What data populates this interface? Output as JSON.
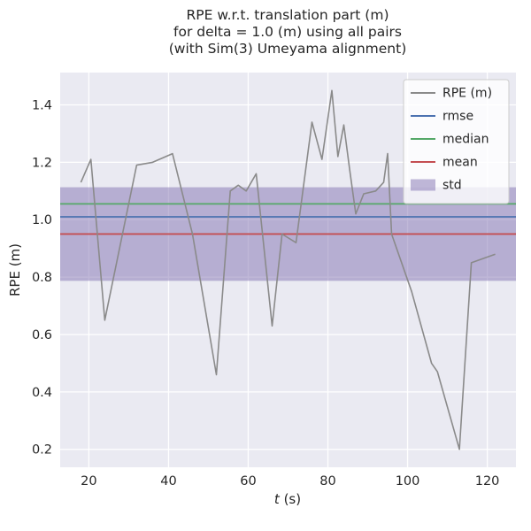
{
  "chart_data": {
    "type": "line",
    "title": "RPE w.r.t. translation part (m)\nfor delta = 1.0 (m) using all pairs\n(with Sim(3) Umeyama alignment)",
    "title_lines": [
      "RPE w.r.t. translation part (m)",
      "for delta = 1.0 (m) using all pairs",
      "(with Sim(3) Umeyama alignment)"
    ],
    "xlabel": "t (s)",
    "ylabel": "RPE (m)",
    "xlim": [
      12.8,
      127.2
    ],
    "ylim": [
      0.1375,
      1.5125
    ],
    "xticks": [
      20,
      40,
      60,
      80,
      100,
      120
    ],
    "yticks": [
      0.2,
      0.4,
      0.6,
      0.8,
      1.0,
      1.2,
      1.4
    ],
    "grid": true,
    "background_color": "#eaeaf2",
    "grid_color": "#ffffff",
    "series": [
      {
        "name": "RPE (m)",
        "color": "#8a8a8a",
        "x": [
          18,
          20.5,
          24,
          32,
          36,
          41,
          46,
          52,
          55.5,
          57.5,
          59.5,
          62,
          66,
          68.5,
          72,
          76,
          78.5,
          81,
          82.5,
          84,
          85.5,
          87,
          89,
          92,
          94,
          95,
          96,
          101,
          106,
          107.5,
          113,
          116,
          122
        ],
        "y": [
          1.13,
          1.21,
          0.65,
          1.19,
          1.2,
          1.23,
          0.95,
          0.46,
          1.1,
          1.12,
          1.1,
          1.16,
          0.63,
          0.95,
          0.92,
          1.34,
          1.21,
          1.45,
          1.22,
          1.33,
          1.17,
          1.02,
          1.09,
          1.1,
          1.13,
          1.23,
          0.95,
          0.75,
          0.5,
          0.47,
          0.2,
          0.85,
          0.88
        ]
      }
    ],
    "stats": {
      "rmse": 1.01,
      "median": 1.055,
      "mean": 0.95,
      "std": 0.163
    },
    "stat_lines": [
      {
        "label": "rmse",
        "value": 1.01,
        "color": "#4c72b0"
      },
      {
        "label": "median",
        "value": 1.055,
        "color": "#55a868"
      },
      {
        "label": "mean",
        "value": 0.95,
        "color": "#c44e52"
      }
    ],
    "std_band": {
      "low": 0.787,
      "high": 1.113,
      "color": "#8172b2",
      "opacity": 0.5
    },
    "legend": {
      "position": "upper right",
      "entries": [
        {
          "label": "RPE (m)",
          "type": "line",
          "color": "#8a8a8a"
        },
        {
          "label": "rmse",
          "type": "line",
          "color": "#4c72b0"
        },
        {
          "label": "median",
          "type": "line",
          "color": "#55a868"
        },
        {
          "label": "mean",
          "type": "line",
          "color": "#c44e52"
        },
        {
          "label": "std",
          "type": "patch",
          "color": "#8172b2",
          "opacity": 0.5
        }
      ]
    }
  }
}
